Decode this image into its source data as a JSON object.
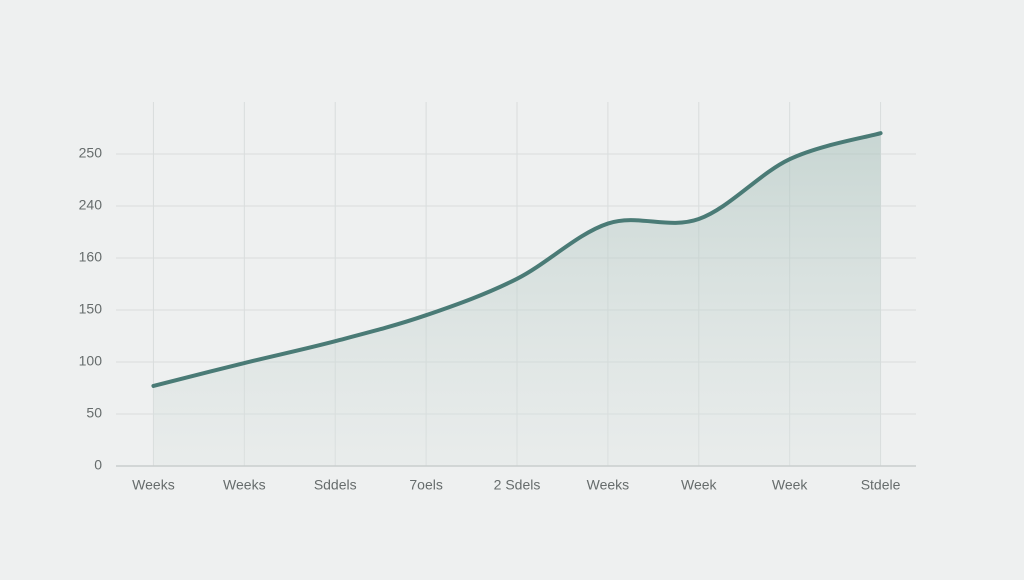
{
  "chart_data": {
    "type": "line",
    "categories": [
      "Weeks",
      "Weeks",
      "Sddels",
      "7oels",
      "2 Sdels",
      "Weeks",
      "Week",
      "Week",
      "Stdele"
    ],
    "series": [
      {
        "values": [
          77,
          99,
          120,
          145,
          156,
          213,
          220,
          249,
          254
        ],
        "color": "#4a7b76"
      }
    ],
    "ylim": [
      0,
      260
    ],
    "yticks": [
      0,
      50,
      100,
      150,
      160,
      240,
      250
    ],
    "grid": true,
    "area": true
  }
}
